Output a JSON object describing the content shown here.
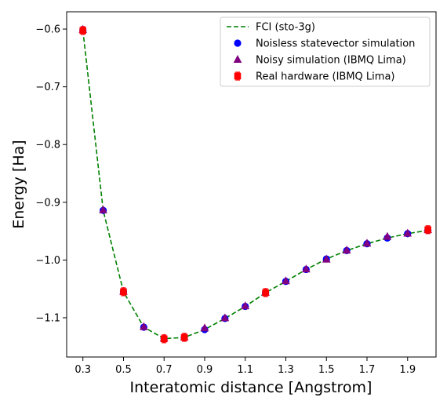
{
  "chart_data": {
    "type": "line",
    "xlabel": "Interatomic distance [Angstrom]",
    "ylabel": "Energy [Ha]",
    "xlim": [
      0.22,
      2.04
    ],
    "ylim": [
      -1.168,
      -0.57
    ],
    "x_ticks": [
      0.3,
      0.5,
      0.7,
      0.9,
      1.1,
      1.3,
      1.5,
      1.7,
      1.9
    ],
    "x_tick_labels": [
      "0.3",
      "0.5",
      "0.7",
      "0.9",
      "1.1",
      "1.3",
      "1.5",
      "1.7",
      "1.9"
    ],
    "y_ticks": [
      -0.6,
      -0.7,
      -0.8,
      -0.9,
      -1.0,
      -1.1
    ],
    "y_tick_labels": [
      "−0.6",
      "−0.7",
      "−0.8",
      "−0.9",
      "−1.0",
      "−1.1"
    ],
    "grid": false,
    "legend_position": "top-right",
    "x": [
      0.3,
      0.4,
      0.5,
      0.6,
      0.7,
      0.8,
      0.9,
      1.0,
      1.1,
      1.2,
      1.3,
      1.4,
      1.5,
      1.6,
      1.7,
      1.8,
      1.9,
      2.0
    ],
    "series": [
      {
        "name": "FCI (sto-3g)",
        "style": "dashed-line",
        "color": "#008000",
        "values": [
          -0.6018,
          -0.9141,
          -1.0551,
          -1.1163,
          -1.1362,
          -1.1341,
          -1.1204,
          -1.1012,
          -1.0804,
          -1.0567,
          -1.037,
          -1.0164,
          -0.9982,
          -0.9837,
          -0.9718,
          -0.9619,
          -0.9543,
          -0.9486
        ]
      },
      {
        "name": "Noisless statevector simulation",
        "style": "circle",
        "color": "#0000ff",
        "values": [
          -0.6018,
          -0.9141,
          -1.0551,
          -1.1163,
          -1.1362,
          -1.1341,
          -1.1204,
          -1.1012,
          -1.0804,
          -1.0567,
          -1.037,
          -1.0164,
          -0.9982,
          -0.9837,
          -0.9718,
          -0.9619,
          -0.9543,
          -0.9486
        ]
      },
      {
        "name": "Noisy simulation (IBMQ Lima)",
        "style": "triangle",
        "color": "#800080",
        "values": [
          -0.601,
          -0.9135,
          -1.0545,
          -1.1158,
          -1.1357,
          -1.1335,
          -1.118,
          -1.1006,
          -1.0798,
          -1.0562,
          -1.0365,
          -1.0159,
          -0.999,
          -0.9833,
          -0.9713,
          -0.9595,
          -0.954,
          -0.948
        ]
      },
      {
        "name": "Real hardware (IBMQ Lima)",
        "style": "square-errorbar",
        "color": "#ff0000",
        "errorbars": true,
        "x": [
          0.3,
          0.5,
          0.7,
          0.8,
          1.2,
          2.0
        ],
        "values": [
          -0.6025,
          -1.055,
          -1.1365,
          -1.134,
          -1.0565,
          -0.9475
        ]
      }
    ]
  }
}
